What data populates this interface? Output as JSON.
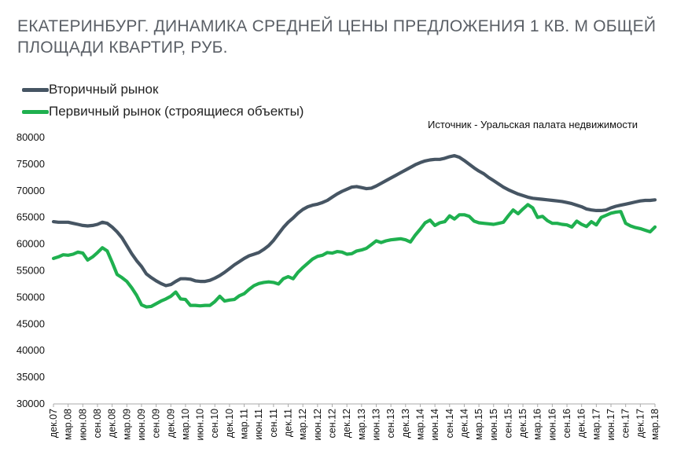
{
  "colors": {
    "secondary": "#465563",
    "primary": "#1fb04f",
    "title": "#5a5f66"
  },
  "chart_data": {
    "type": "line",
    "title": "ЕКАТЕРИНБУРГ. ДИНАМИКА СРЕДНЕЙ ЦЕНЫ ПРЕДЛОЖЕНИЯ 1 КВ. М ОБЩЕЙ ПЛОЩАДИ КВАРТИР,  РУБ.",
    "source": "Источник - Уральская палата недвижимости",
    "xlabel": "",
    "ylabel": "",
    "ylim": [
      30000,
      80000
    ],
    "yticks": [
      80000,
      75000,
      70000,
      65000,
      60000,
      55000,
      50000,
      45000,
      40000,
      35000,
      30000
    ],
    "ytick_labels": [
      "80000",
      "75000",
      "70000",
      "65000",
      "60000",
      "55000",
      "50000",
      "45000",
      "40000",
      "35000",
      "30000"
    ],
    "x_labels": [
      "дек.07",
      "мар.08",
      "июн.08",
      "сен.08",
      "дек.08",
      "мар.09",
      "июн.09",
      "сен.09",
      "дек.09",
      "мар.10",
      "июн.10",
      "сен.10",
      "дек.10",
      "мар.11",
      "июн.11",
      "сен.11",
      "дек.11",
      "мар.12",
      "июн.12",
      "сен.12",
      "дек.12",
      "мар.13",
      "июн.13",
      "сен.13",
      "дек.13",
      "мар.14",
      "июн.14",
      "сен.14",
      "дек.14",
      "мар.15",
      "июн.15",
      "сен.15",
      "дек.15",
      "мар.16",
      "июн.16",
      "сен.16",
      "дек.16",
      "мар.17",
      "июн.17",
      "сен.17",
      "дек.17",
      "мар.18"
    ],
    "x_label_step_months": 3,
    "n_points": 124,
    "series": [
      {
        "name": "Вторичный рынок",
        "color": "#465563",
        "values": [
          64200,
          64100,
          64100,
          64100,
          63900,
          63700,
          63500,
          63400,
          63500,
          63700,
          64100,
          63900,
          63200,
          62300,
          61200,
          59700,
          58200,
          56900,
          55800,
          54400,
          53700,
          53100,
          52600,
          52200,
          52400,
          53000,
          53500,
          53500,
          53400,
          53100,
          53000,
          53000,
          53200,
          53600,
          54100,
          54700,
          55400,
          56100,
          56700,
          57300,
          57800,
          58100,
          58400,
          59000,
          59700,
          60700,
          61900,
          63100,
          64100,
          64900,
          65800,
          66500,
          67000,
          67300,
          67500,
          67800,
          68200,
          68800,
          69400,
          69900,
          70300,
          70700,
          70800,
          70600,
          70400,
          70500,
          70900,
          71400,
          71900,
          72400,
          72900,
          73400,
          73900,
          74400,
          74900,
          75300,
          75600,
          75800,
          75900,
          75900,
          76100,
          76400,
          76600,
          76300,
          75700,
          75000,
          74300,
          73700,
          73200,
          72500,
          71900,
          71300,
          70700,
          70200,
          69800,
          69400,
          69100,
          68800,
          68600,
          68500,
          68400,
          68300,
          68200,
          68100,
          68000,
          67800,
          67600,
          67300,
          67000,
          66600,
          66400,
          66300,
          66300,
          66400,
          66800,
          67100,
          67300,
          67500,
          67700,
          67900,
          68100,
          68200,
          68200,
          68300
        ]
      },
      {
        "name": "Первичный рынок (строящиеся объекты)",
        "color": "#1fb04f",
        "values": [
          57300,
          57600,
          58000,
          57900,
          58100,
          58500,
          58300,
          57000,
          57600,
          58400,
          59300,
          58700,
          56600,
          54300,
          53700,
          53000,
          51800,
          50400,
          48600,
          48200,
          48300,
          48800,
          49300,
          49700,
          50200,
          51000,
          49700,
          49600,
          48500,
          48500,
          48400,
          48500,
          48500,
          49200,
          50200,
          49300,
          49500,
          49600,
          50300,
          50700,
          51500,
          52200,
          52600,
          52800,
          52900,
          52800,
          52500,
          53500,
          53900,
          53500,
          54700,
          55600,
          56400,
          57200,
          57700,
          57900,
          58400,
          58300,
          58600,
          58500,
          58100,
          58200,
          58700,
          58900,
          59200,
          59900,
          60600,
          60300,
          60600,
          60800,
          60900,
          61000,
          60800,
          60400,
          61700,
          62800,
          64000,
          64500,
          63500,
          64000,
          64200,
          65300,
          64700,
          65500,
          65500,
          65200,
          64300,
          64000,
          63900,
          63800,
          63700,
          63900,
          64100,
          65300,
          66400,
          65700,
          66600,
          67400,
          66800,
          65000,
          65200,
          64400,
          63900,
          63900,
          63700,
          63600,
          63200,
          64300,
          63700,
          63300,
          64200,
          63600,
          65000,
          65400,
          65800,
          66000,
          66100,
          63900,
          63400,
          63100,
          62900,
          62600,
          62300,
          63200
        ]
      }
    ]
  }
}
